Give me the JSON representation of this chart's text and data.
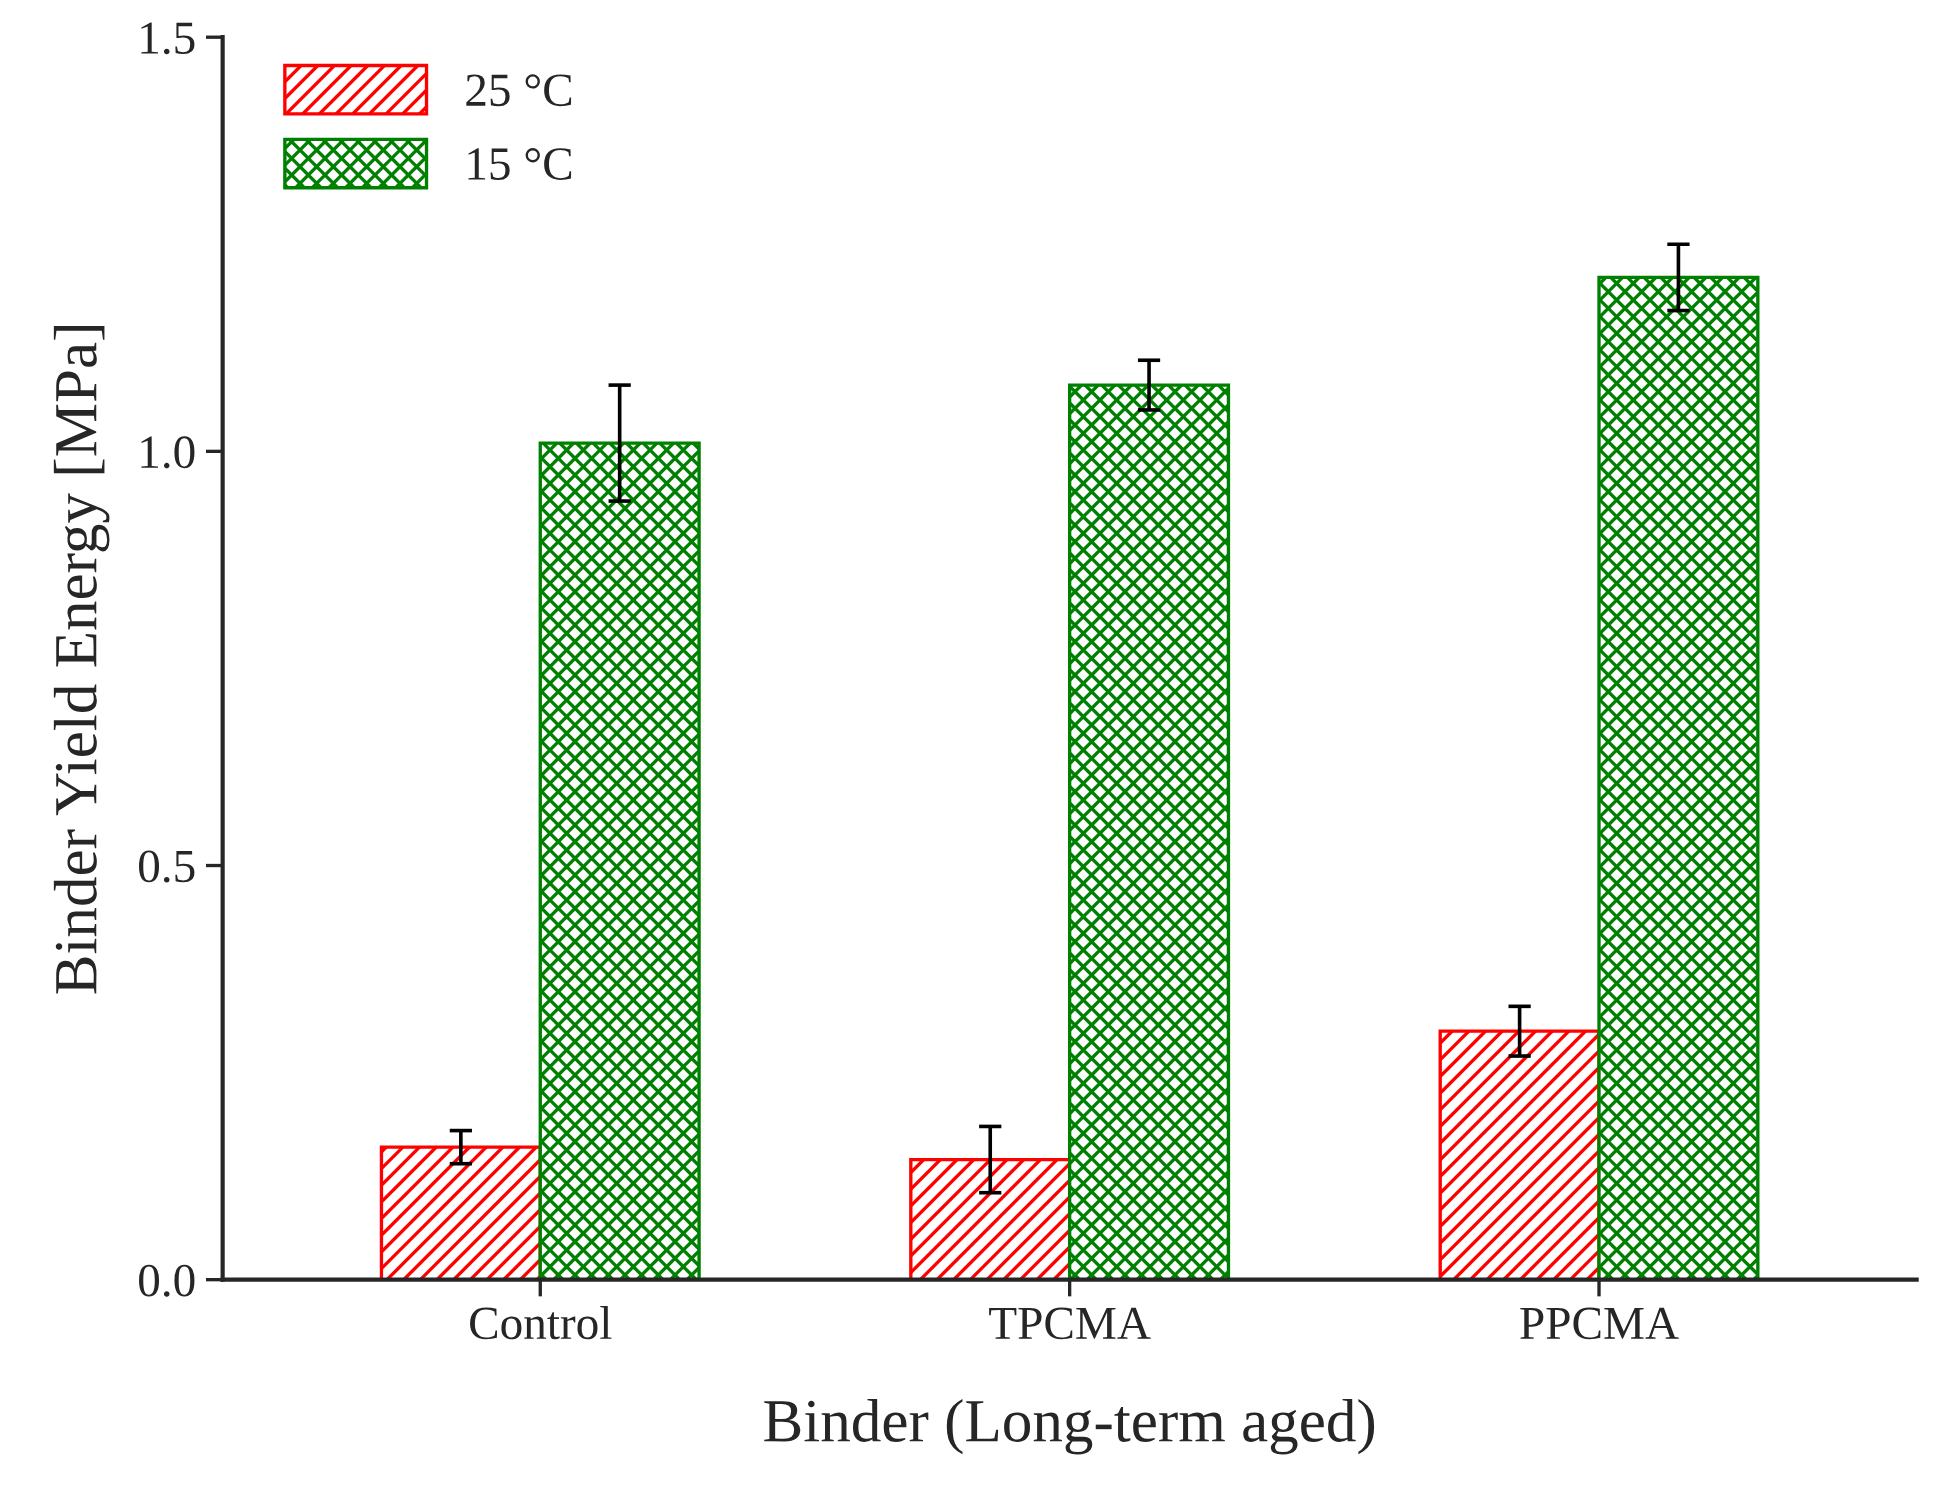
{
  "chart_data": {
    "type": "bar",
    "xlabel": "Binder (Long-term aged)",
    "ylabel": "Binder Yield Energy [MPa]",
    "categories": [
      "Control",
      "TPCMA",
      "PPCMA"
    ],
    "series": [
      {
        "name": "25 °C",
        "color": "#ff0000",
        "values": [
          0.16,
          0.145,
          0.3
        ],
        "errors": [
          0.02,
          0.04,
          0.03
        ]
      },
      {
        "name": "15 °C",
        "color": "#008000",
        "values": [
          1.01,
          1.08,
          1.21
        ],
        "errors": [
          0.07,
          0.03,
          0.04
        ]
      }
    ],
    "ylim": [
      0,
      1.5
    ],
    "yticks": [
      {
        "value": 0,
        "label": "0.0"
      },
      {
        "value": 0.5,
        "label": "0.5"
      },
      {
        "value": 1.0,
        "label": "1.0"
      },
      {
        "value": 1.5,
        "label": "1.5"
      }
    ],
    "legend": "top left",
    "grid": false
  }
}
